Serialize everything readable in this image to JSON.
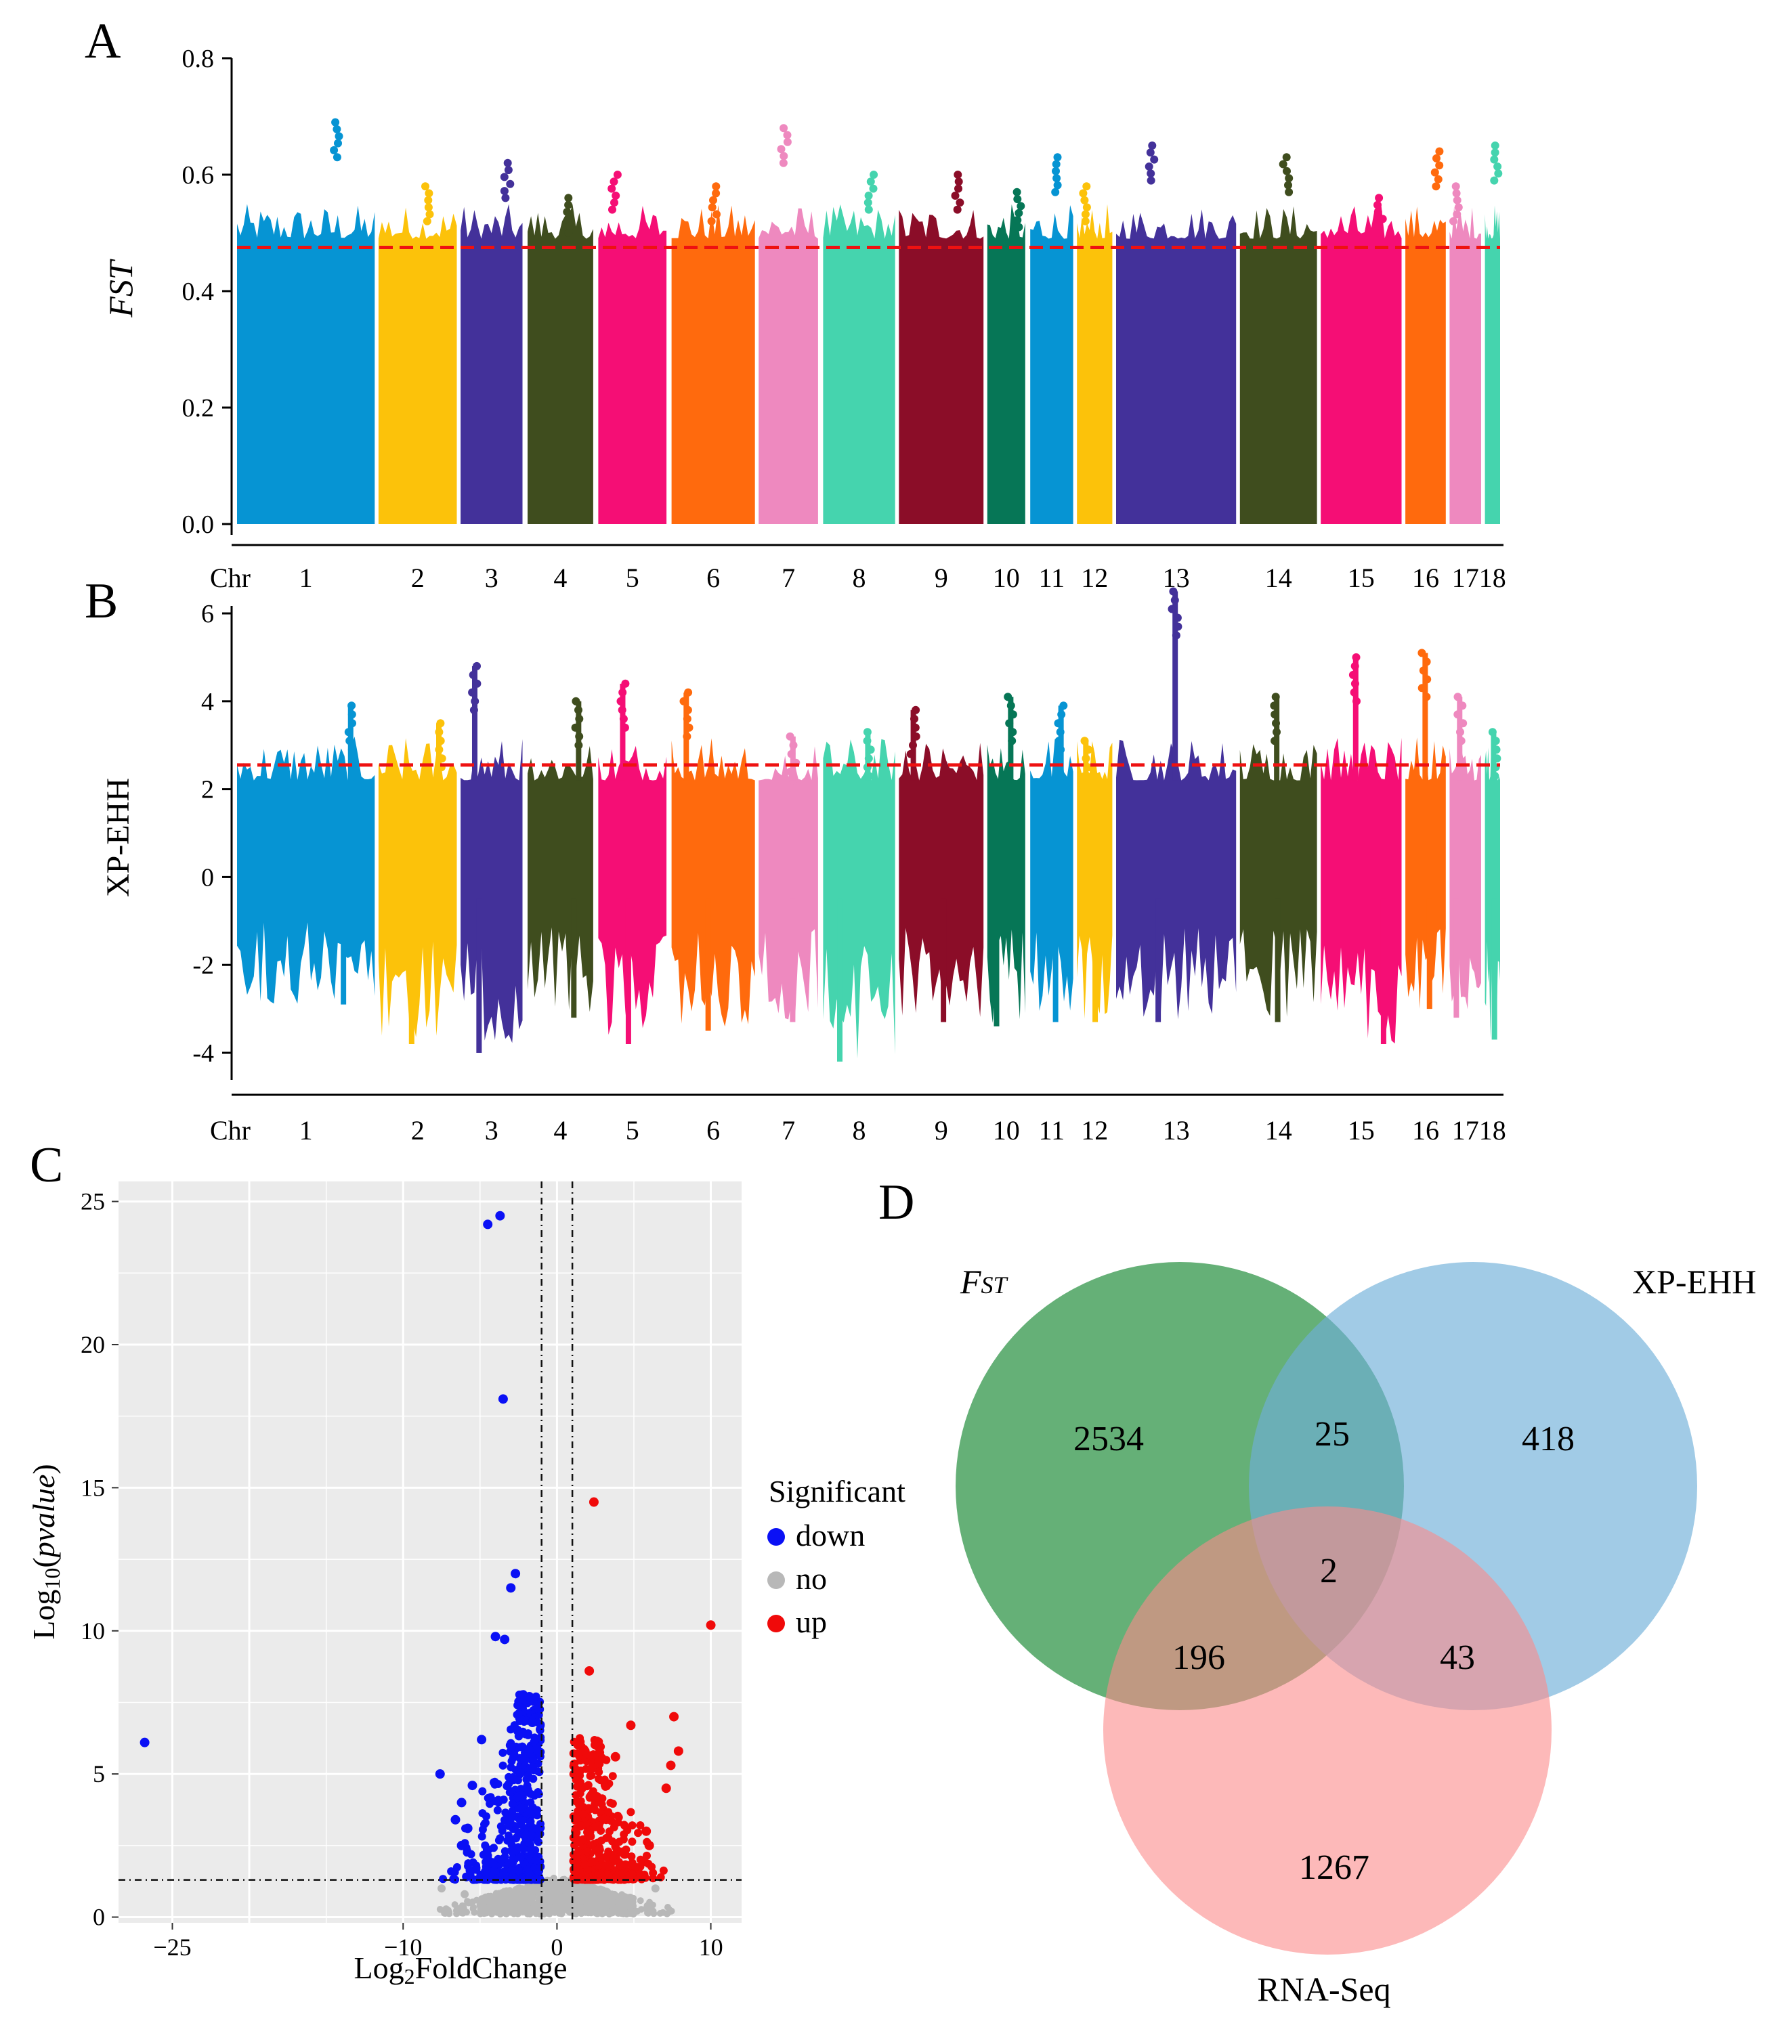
{
  "panel_labels": {
    "a": "A",
    "b": "B",
    "c": "C",
    "d": "D"
  },
  "colors": {
    "chromosomes": [
      "#0694D3",
      "#FCC20A",
      "#43319A",
      "#3F4D1E",
      "#F50E75",
      "#FF6A0D",
      "#EE89BF",
      "#45D4AE",
      "#8B0D28",
      "#067656"
    ],
    "threshold": "#EE1111",
    "volcano_down": "#0A10F5",
    "volcano_no": "#B8B8B8",
    "volcano_up": "#F00A0A",
    "volcano_bg": "#EBEBEB",
    "venn_fst": "#3E9C55",
    "venn_xpehh": "#6EAFD9",
    "venn_rnaseq": "#FB8A8A"
  },
  "chart_data": [
    {
      "id": "A",
      "type": "scatter",
      "subtype": "manhattan",
      "ylabel": "FST",
      "ylabel_sub": "ST",
      "ylim": [
        0.0,
        0.8
      ],
      "yticks": [
        "0.0",
        "0.2",
        "0.4",
        "0.6",
        "0.8"
      ],
      "xlabel_prefix": "Chr",
      "chromosomes": [
        "1",
        "2",
        "3",
        "4",
        "5",
        "6",
        "7",
        "8",
        "9",
        "10",
        "11",
        "12",
        "13",
        "14",
        "15",
        "16",
        "17",
        "18"
      ],
      "chromosome_spans": [
        [
          0,
          0.109
        ],
        [
          0.112,
          0.174
        ],
        [
          0.177,
          0.226
        ],
        [
          0.23,
          0.282
        ],
        [
          0.286,
          0.34
        ],
        [
          0.344,
          0.41
        ],
        [
          0.413,
          0.46
        ],
        [
          0.464,
          0.521
        ],
        [
          0.524,
          0.591
        ],
        [
          0.594,
          0.624
        ],
        [
          0.628,
          0.662
        ],
        [
          0.665,
          0.693
        ],
        [
          0.696,
          0.791
        ],
        [
          0.794,
          0.855
        ],
        [
          0.858,
          0.922
        ],
        [
          0.925,
          0.957
        ],
        [
          0.96,
          0.985
        ],
        [
          0.988,
          1.0
        ]
      ],
      "threshold": 0.475,
      "chrom_max": [
        0.69,
        0.58,
        0.62,
        0.56,
        0.6,
        0.58,
        0.68,
        0.6,
        0.6,
        0.57,
        0.63,
        0.58,
        0.65,
        0.63,
        0.56,
        0.64,
        0.58,
        0.65
      ],
      "chrom_min": [
        0.43,
        0.38,
        0.42,
        0.45,
        0.42,
        0.38,
        0.43,
        0.3,
        0.45,
        0.46,
        0.44,
        0.44,
        0.38,
        0.44,
        0.45,
        0.44,
        0.44,
        0.45
      ]
    },
    {
      "id": "B",
      "type": "scatter",
      "subtype": "manhattan",
      "ylabel": "XP-EHH",
      "ylim": [
        -4.2,
        6.5
      ],
      "yticks": [
        "-4",
        "-2",
        "0",
        "2",
        "4",
        "6"
      ],
      "xlabel_prefix": "Chr",
      "chromosomes": [
        "1",
        "2",
        "3",
        "4",
        "5",
        "6",
        "7",
        "8",
        "9",
        "10",
        "11",
        "12",
        "13",
        "14",
        "15",
        "16",
        "17",
        "18"
      ],
      "threshold": 2.55,
      "chrom_max": [
        3.9,
        3.5,
        4.8,
        4.0,
        4.4,
        4.2,
        3.2,
        3.3,
        3.8,
        4.1,
        3.9,
        3.1,
        6.5,
        4.1,
        5.0,
        5.1,
        4.1,
        3.3
      ],
      "chrom_min": [
        -2.9,
        -3.8,
        -4.0,
        -3.2,
        -3.8,
        -3.5,
        -3.3,
        -4.2,
        -3.3,
        -3.4,
        -3.3,
        -3.3,
        -3.3,
        -3.3,
        -3.8,
        -3.0,
        -3.2,
        -3.7
      ]
    },
    {
      "id": "C",
      "type": "scatter",
      "subtype": "volcano",
      "xlabel": "Log2FoldChange",
      "xlabel_parts": [
        "Log",
        "2",
        "FoldChange"
      ],
      "ylabel": "Log10(pvalue)",
      "ylabel_parts": [
        "Log",
        "10",
        "(",
        "pvalue",
        ")"
      ],
      "xlim": [
        -28.5,
        12
      ],
      "ylim": [
        -0.2,
        25.7
      ],
      "xticks": [
        -25,
        -10,
        0,
        10
      ],
      "xtick_labels": [
        "−25",
        "−10",
        "0",
        "10"
      ],
      "yticks": [
        0,
        5,
        10,
        15,
        20,
        25
      ],
      "cutoffs": {
        "fc": [
          -1,
          1
        ],
        "p": 1.3
      },
      "legend_title": "Significant",
      "legend": [
        "down",
        "no",
        "up"
      ],
      "down_points": [
        [
          -26.8,
          6.1
        ],
        [
          -4.5,
          24.2
        ],
        [
          -3.7,
          24.5
        ],
        [
          -3.5,
          18.1
        ],
        [
          -2.7,
          12.0
        ],
        [
          -3.0,
          11.5
        ],
        [
          -4.0,
          9.8
        ],
        [
          -3.4,
          9.7
        ],
        [
          -4.9,
          6.2
        ],
        [
          -7.6,
          5.0
        ],
        [
          -5.5,
          4.6
        ],
        [
          -6.2,
          4.0
        ],
        [
          -6.6,
          3.4
        ],
        [
          -5.8,
          3.1
        ],
        [
          -6.2,
          2.5
        ],
        [
          -4.6,
          2.2
        ],
        [
          -4.2,
          1.9
        ],
        [
          -2.3,
          3.8
        ],
        [
          -1.8,
          7.7
        ],
        [
          -1.6,
          6.8
        ],
        [
          -2.1,
          5.5
        ]
      ],
      "up_points": [
        [
          10.0,
          10.2
        ],
        [
          2.4,
          14.5
        ],
        [
          2.1,
          8.6
        ],
        [
          7.6,
          7.0
        ],
        [
          4.8,
          6.7
        ],
        [
          7.9,
          5.8
        ],
        [
          7.4,
          5.3
        ],
        [
          7.1,
          4.5
        ],
        [
          1.8,
          5.8
        ],
        [
          3.8,
          5.6
        ],
        [
          2.6,
          4.2
        ],
        [
          5.8,
          3.0
        ],
        [
          6.0,
          2.5
        ],
        [
          4.4,
          2.2
        ],
        [
          3.3,
          1.8
        ]
      ],
      "no_points": [
        [
          -7.5,
          1.0
        ],
        [
          -6.0,
          0.8
        ],
        [
          6.4,
          1.0
        ],
        [
          3.2,
          0.7
        ],
        [
          -3.0,
          0.4
        ],
        [
          -1.0,
          0.2
        ]
      ]
    },
    {
      "id": "D",
      "type": "venn",
      "sets": [
        "FST",
        "XP-EHH",
        "RNA-Seq"
      ],
      "fst_label_main": "F",
      "fst_label_sub": "ST",
      "regions": {
        "fst_only": "2534",
        "xpehh_only": "418",
        "rnaseq_only": "1267",
        "fst_xpehh": "25",
        "fst_rnaseq": "196",
        "xpehh_rnaseq": "43",
        "all": "2"
      }
    }
  ]
}
